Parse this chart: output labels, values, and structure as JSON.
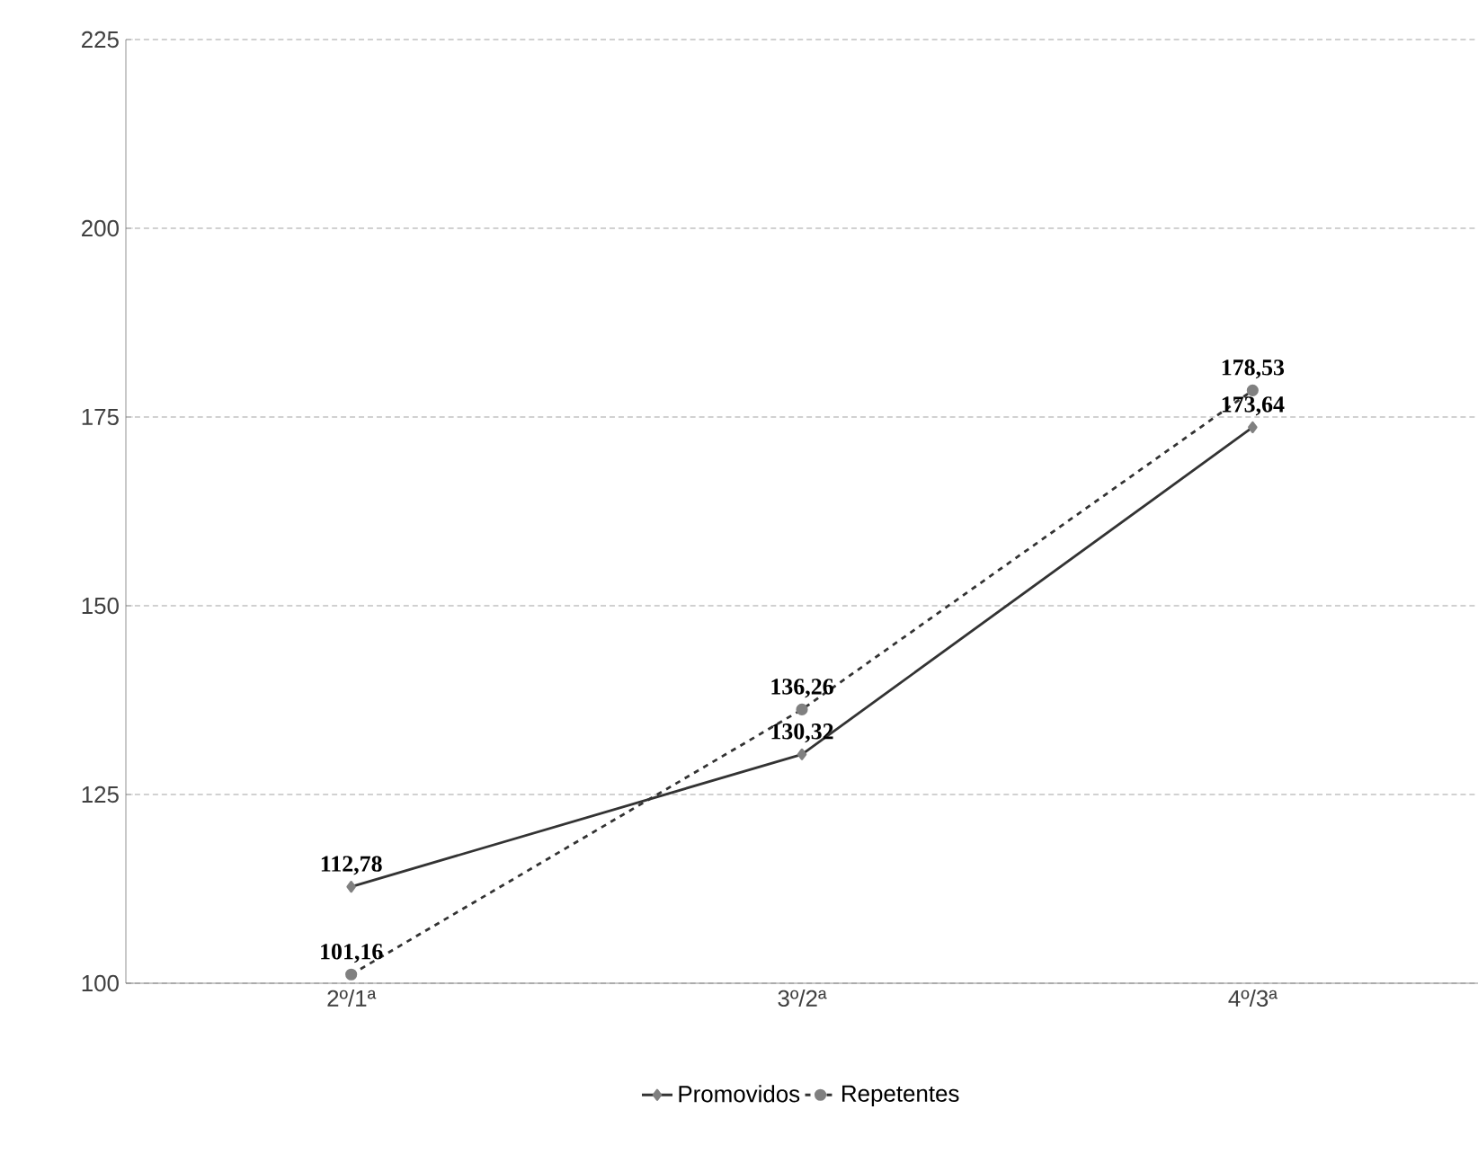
{
  "chart_data": {
    "type": "line",
    "categories": [
      "2º/1ª",
      "3º/2ª",
      "4º/3ª"
    ],
    "series": [
      {
        "name": "Promovidos",
        "color": "#333333",
        "values": [
          112.78,
          130.32,
          173.64
        ],
        "value_labels": [
          "112,78",
          "130,32",
          "173,64"
        ],
        "marker": "diamond",
        "line_style": "solid"
      },
      {
        "name": "Repetentes",
        "color": "#333333",
        "values": [
          101.16,
          136.26,
          178.53
        ],
        "value_labels": [
          "101,16",
          "136,26",
          "178,53"
        ],
        "marker": "circle",
        "line_style": "dashed"
      }
    ],
    "ylim": [
      100,
      225
    ],
    "yticks": [
      100,
      125,
      150,
      175,
      200,
      225
    ],
    "grid": "y",
    "legend": "bottom"
  }
}
